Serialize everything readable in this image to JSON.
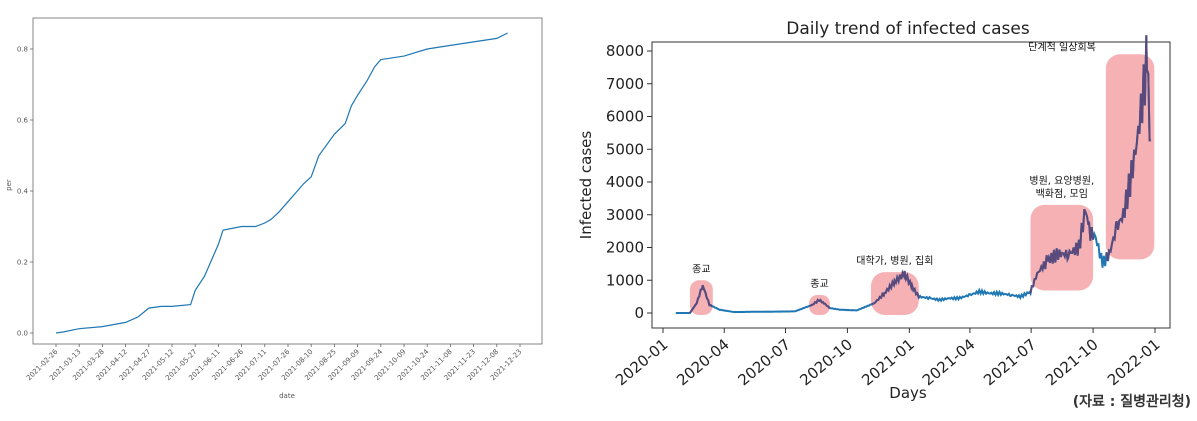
{
  "chart_data": [
    {
      "type": "line",
      "title": "",
      "xlabel": "date",
      "ylabel": "per",
      "ylim": [
        0.0,
        0.9
      ],
      "yticks": [
        "0.0",
        "0.2",
        "0.4",
        "0.6",
        "0.8"
      ],
      "xticks": [
        "2021-02-26",
        "2021-03-13",
        "2021-03-28",
        "2021-04-12",
        "2021-04-27",
        "2021-05-12",
        "2021-05-27",
        "2021-06-11",
        "2021-06-26",
        "2021-07-11",
        "2021-07-26",
        "2021-08-10",
        "2021-08-25",
        "2021-09-09",
        "2021-09-24",
        "2021-10-09",
        "2021-10-24",
        "2021-11-08",
        "2021-11-23",
        "2021-12-08",
        "2021-12-23"
      ],
      "line_color": "#1f77b4",
      "grid": false,
      "x": [
        "2021-02-26",
        "2021-03-03",
        "2021-03-13",
        "2021-03-28",
        "2021-04-12",
        "2021-04-20",
        "2021-04-27",
        "2021-05-05",
        "2021-05-12",
        "2021-05-24",
        "2021-05-27",
        "2021-06-02",
        "2021-06-06",
        "2021-06-11",
        "2021-06-14",
        "2021-06-26",
        "2021-07-05",
        "2021-07-11",
        "2021-07-15",
        "2021-07-20",
        "2021-07-26",
        "2021-08-01",
        "2021-08-05",
        "2021-08-10",
        "2021-08-15",
        "2021-08-20",
        "2021-08-25",
        "2021-09-01",
        "2021-09-05",
        "2021-09-09",
        "2021-09-15",
        "2021-09-20",
        "2021-09-24",
        "2021-10-09",
        "2021-10-24",
        "2021-11-08",
        "2021-11-23",
        "2021-12-08",
        "2021-12-15"
      ],
      "values": [
        0.0,
        0.003,
        0.012,
        0.018,
        0.03,
        0.045,
        0.07,
        0.075,
        0.075,
        0.08,
        0.12,
        0.16,
        0.2,
        0.25,
        0.29,
        0.3,
        0.3,
        0.31,
        0.32,
        0.34,
        0.37,
        0.4,
        0.42,
        0.44,
        0.5,
        0.53,
        0.56,
        0.59,
        0.64,
        0.67,
        0.71,
        0.75,
        0.77,
        0.78,
        0.8,
        0.81,
        0.82,
        0.83,
        0.845
      ]
    },
    {
      "type": "line",
      "title": "Daily trend of infected cases",
      "xlabel": "Days",
      "ylabel": "Infected cases",
      "ylim": [
        -300,
        8300
      ],
      "yticks": [
        "0",
        "1000",
        "2000",
        "3000",
        "4000",
        "5000",
        "6000",
        "7000",
        "8000"
      ],
      "xticks": [
        "2020-01",
        "2020-04",
        "2020-07",
        "2020-10",
        "2021-01",
        "2021-04",
        "2021-07",
        "2021-10",
        "2022-01"
      ],
      "line_color": "#1f77b4",
      "grid": false,
      "x": [
        "2020-01-20",
        "2020-02-10",
        "2020-02-20",
        "2020-02-29",
        "2020-03-10",
        "2020-03-25",
        "2020-04-15",
        "2020-06-01",
        "2020-07-15",
        "2020-08-10",
        "2020-08-20",
        "2020-08-27",
        "2020-09-05",
        "2020-09-20",
        "2020-10-15",
        "2020-11-10",
        "2020-11-25",
        "2020-12-10",
        "2020-12-25",
        "2021-01-05",
        "2021-01-15",
        "2021-02-01",
        "2021-02-15",
        "2021-03-01",
        "2021-03-15",
        "2021-04-01",
        "2021-04-15",
        "2021-05-01",
        "2021-05-15",
        "2021-06-01",
        "2021-06-15",
        "2021-06-30",
        "2021-07-10",
        "2021-07-25",
        "2021-08-10",
        "2021-08-25",
        "2021-09-10",
        "2021-09-20",
        "2021-09-25",
        "2021-10-05",
        "2021-10-15",
        "2021-10-25",
        "2021-11-05",
        "2021-11-15",
        "2021-11-25",
        "2021-12-05",
        "2021-12-15",
        "2021-12-20",
        "2021-12-25"
      ],
      "values": [
        0,
        0,
        300,
        850,
        250,
        100,
        30,
        40,
        50,
        250,
        400,
        300,
        150,
        100,
        80,
        300,
        600,
        950,
        1200,
        800,
        500,
        450,
        400,
        450,
        450,
        550,
        650,
        600,
        600,
        550,
        500,
        650,
        1200,
        1600,
        1800,
        1800,
        2000,
        3200,
        2500,
        2300,
        1500,
        1800,
        2600,
        3000,
        4000,
        5200,
        6800,
        7800,
        5300
      ],
      "highlights": [
        {
          "label": "종교",
          "from": "2020-02-10",
          "to": "2020-03-15",
          "ymin": 0,
          "ymax": 1000
        },
        {
          "label": "종교",
          "from": "2020-08-05",
          "to": "2020-09-05",
          "ymin": 0,
          "ymax": 550
        },
        {
          "label": "대학가, 병원, 집회",
          "from": "2020-11-05",
          "to": "2021-01-15",
          "ymin": 0,
          "ymax": 1250
        },
        {
          "label": "병원, 요양병원,\n백화점, 모임",
          "from": "2021-06-30",
          "to": "2021-10-01",
          "ymin": 750,
          "ymax": 3300
        },
        {
          "label": "단계적 일상회복",
          "from": "2021-10-20",
          "to": "2021-12-31",
          "ymin": 1700,
          "ymax": 7900
        }
      ]
    }
  ],
  "source_note": "(자료 : 질병관리청)",
  "colors": {
    "line": "#1f77b4",
    "highlight": "#f4a3a8",
    "highlight_line": "#5a4a7c"
  }
}
